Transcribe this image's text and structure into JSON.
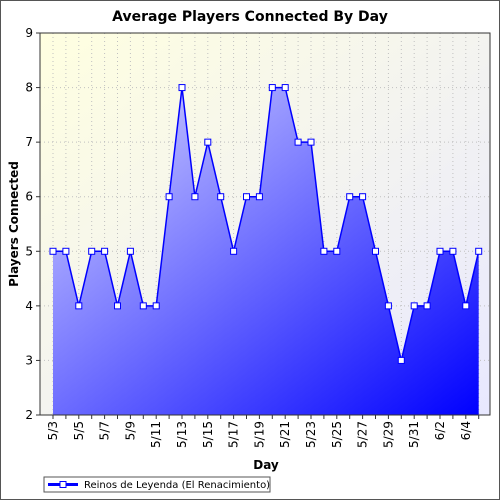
{
  "chart_data": {
    "type": "area",
    "title": "Average Players Connected By Day",
    "xlabel": "Day",
    "ylabel": "Players Connected",
    "ylim": [
      2,
      9
    ],
    "yticks": [
      "2",
      "3",
      "4",
      "5",
      "6",
      "7",
      "8",
      "9"
    ],
    "x": [
      "5/3",
      "5/4",
      "5/5",
      "5/6",
      "5/7",
      "5/8",
      "5/9",
      "5/10",
      "5/11",
      "5/12",
      "5/13",
      "5/14",
      "5/15",
      "5/16",
      "5/17",
      "5/18",
      "5/19",
      "5/20",
      "5/21",
      "5/22",
      "5/23",
      "5/24",
      "5/25",
      "5/26",
      "5/27",
      "5/28",
      "5/29",
      "5/30",
      "5/31",
      "6/1",
      "6/2",
      "6/3",
      "6/4",
      "6/5"
    ],
    "xtick_labels": [
      "5/3",
      "",
      "5/5",
      "",
      "5/7",
      "",
      "5/9",
      "",
      "5/11",
      "",
      "5/13",
      "",
      "5/15",
      "",
      "5/17",
      "",
      "5/19",
      "",
      "5/21",
      "",
      "5/23",
      "",
      "5/25",
      "",
      "5/27",
      "",
      "5/29",
      "",
      "5/31",
      "",
      "6/2",
      "",
      "6/4",
      ""
    ],
    "series": [
      {
        "name": "Reinos de Leyenda (El Renacimiento)",
        "values": [
          5,
          5,
          4,
          5,
          5,
          4,
          5,
          4,
          4,
          6,
          8,
          6,
          7,
          6,
          5,
          6,
          6,
          8,
          8,
          7,
          7,
          5,
          5,
          6,
          6,
          5,
          4,
          3,
          4,
          4,
          5,
          5,
          4,
          5
        ]
      }
    ],
    "grid": true,
    "legend_position": "bottom-left",
    "colors": {
      "line": "#0000ff",
      "marker_fill": "#ffffff",
      "area_top": "#d8d8ff",
      "area_bottom": "#0000ff",
      "plot_bg_top": "#ffffe0",
      "plot_bg_bottom": "#e8e8ff",
      "grid": "#c0c0c0"
    }
  }
}
